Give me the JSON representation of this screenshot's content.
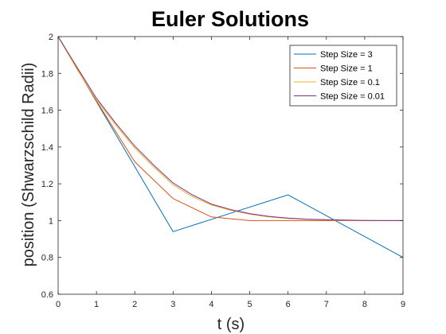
{
  "chart_data": {
    "type": "line",
    "title": "Euler Solutions",
    "xlabel": "t (s)",
    "ylabel": "position (Shwarzschild Radii)",
    "xlim": [
      0,
      9
    ],
    "ylim": [
      0.6,
      2
    ],
    "xticks": [
      0,
      1,
      2,
      3,
      4,
      5,
      6,
      7,
      8,
      9
    ],
    "yticks": [
      0.6,
      0.8,
      1,
      1.2,
      1.4,
      1.6,
      1.8,
      2
    ],
    "ytick_labels": [
      "0.6",
      "0.8",
      "1",
      "1.2",
      "1.4",
      "1.6",
      "1.8",
      "2"
    ],
    "grid": false,
    "legend_position": "top-right",
    "series": [
      {
        "name": "Step Size = 3",
        "color": "#0072BD",
        "x": [
          0,
          3,
          6,
          9
        ],
        "y": [
          2,
          0.94,
          1.14,
          0.8
        ]
      },
      {
        "name": "Step Size = 1",
        "color": "#D95319",
        "x": [
          0,
          1,
          2,
          3,
          4,
          5,
          6,
          7,
          8,
          9
        ],
        "y": [
          2,
          1.65,
          1.32,
          1.12,
          1.02,
          1.0,
          1.0,
          1.0,
          1.0,
          1.0
        ]
      },
      {
        "name": "Step Size = 0.1",
        "color": "#EDB120",
        "x": [
          0,
          0.5,
          1,
          1.5,
          2,
          2.5,
          3,
          3.5,
          4,
          4.5,
          5,
          5.5,
          6,
          6.5,
          7,
          7.5,
          8,
          8.5,
          9
        ],
        "y": [
          2,
          1.82,
          1.656,
          1.52,
          1.395,
          1.29,
          1.195,
          1.13,
          1.085,
          1.055,
          1.035,
          1.02,
          1.012,
          1.007,
          1.004,
          1.002,
          1.001,
          1.0,
          1.0
        ]
      },
      {
        "name": "Step Size = 0.01",
        "color": "#7E2F8E",
        "x": [
          0,
          0.5,
          1,
          1.5,
          2,
          2.5,
          3,
          3.5,
          4,
          4.5,
          5,
          5.5,
          6,
          6.5,
          7,
          7.5,
          8,
          8.5,
          9
        ],
        "y": [
          2,
          1.83,
          1.665,
          1.53,
          1.405,
          1.3,
          1.205,
          1.14,
          1.09,
          1.06,
          1.038,
          1.023,
          1.014,
          1.008,
          1.005,
          1.003,
          1.001,
          1.0,
          1.0
        ]
      }
    ]
  }
}
